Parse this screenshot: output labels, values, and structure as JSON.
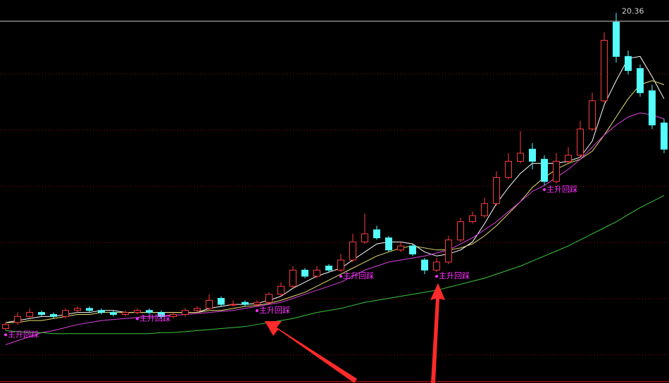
{
  "chart_data": {
    "type": "candlestick",
    "categories": [
      null,
      null,
      null,
      null,
      null,
      null,
      null,
      null,
      null,
      null,
      null,
      null,
      null,
      null,
      null,
      null,
      null,
      null,
      null,
      null,
      null,
      null,
      null,
      null,
      null,
      null,
      null,
      null,
      null,
      null,
      null,
      null,
      null,
      null,
      null,
      null,
      null,
      null,
      null,
      null,
      null,
      null,
      null,
      null,
      null,
      null,
      null,
      null,
      null,
      null,
      null,
      null,
      null,
      null,
      null,
      null
    ],
    "open": [
      4.7,
      5.0,
      5.3,
      5.5,
      5.4,
      5.3,
      5.6,
      5.7,
      5.6,
      5.5,
      5.4,
      5.5,
      5.6,
      5.5,
      5.3,
      5.4,
      5.6,
      5.7,
      6.2,
      5.9,
      6.0,
      5.9,
      6.0,
      6.4,
      6.8,
      7.6,
      7.3,
      7.8,
      7.6,
      8.1,
      9.0,
      9.6,
      9.2,
      8.6,
      8.8,
      8.1,
      7.6,
      8.0,
      9.1,
      10.0,
      10.3,
      10.9,
      12.2,
      13.0,
      13.6,
      13.1,
      12.0,
      13.0,
      13.3,
      14.6,
      16.0,
      19.9,
      18.2,
      17.6,
      16.5,
      14.9
    ],
    "high": [
      5.0,
      5.5,
      5.7,
      5.6,
      5.5,
      5.7,
      5.8,
      5.8,
      5.7,
      5.6,
      5.6,
      5.7,
      5.7,
      5.6,
      5.5,
      5.7,
      5.8,
      6.4,
      6.3,
      6.1,
      6.1,
      6.1,
      6.5,
      7.0,
      7.8,
      7.7,
      7.8,
      7.9,
      8.4,
      9.4,
      10.4,
      9.8,
      9.3,
      9.0,
      8.9,
      8.2,
      8.2,
      9.3,
      10.2,
      10.5,
      11.2,
      12.5,
      13.4,
      14.5,
      13.9,
      13.3,
      13.4,
      13.7,
      15.0,
      16.4,
      19.4,
      20.36,
      18.5,
      17.8,
      16.8,
      15.1
    ],
    "low": [
      4.6,
      4.9,
      5.2,
      5.3,
      5.2,
      5.2,
      5.5,
      5.5,
      5.4,
      5.3,
      5.3,
      5.4,
      5.4,
      5.2,
      5.2,
      5.3,
      5.5,
      5.6,
      5.8,
      5.8,
      5.8,
      5.8,
      5.9,
      6.3,
      6.7,
      7.2,
      7.2,
      7.5,
      7.5,
      8.0,
      8.9,
      9.1,
      8.5,
      8.5,
      8.3,
      7.4,
      7.5,
      7.9,
      9.0,
      9.9,
      10.2,
      10.8,
      12.1,
      12.9,
      12.6,
      11.8,
      11.9,
      12.9,
      13.2,
      14.5,
      15.9,
      17.9,
      17.3,
      16.2,
      14.6,
      13.4
    ],
    "close": [
      4.9,
      5.3,
      5.5,
      5.4,
      5.3,
      5.6,
      5.7,
      5.6,
      5.5,
      5.4,
      5.5,
      5.6,
      5.5,
      5.3,
      5.4,
      5.6,
      5.7,
      6.1,
      5.9,
      5.9,
      5.9,
      6.0,
      6.4,
      6.8,
      7.6,
      7.3,
      7.6,
      7.6,
      8.1,
      9.0,
      9.4,
      9.2,
      8.6,
      8.8,
      8.4,
      7.6,
      8.0,
      9.1,
      10.0,
      10.3,
      10.9,
      12.2,
      13.0,
      13.4,
      13.0,
      12.0,
      13.0,
      13.3,
      14.6,
      16.0,
      19.0,
      18.2,
      17.5,
      16.4,
      14.8,
      13.6
    ],
    "up_color": "#ff3c3c",
    "down_color": "#54fcfc",
    "series": [
      {
        "color": "#ffffff",
        "values": [
          5.0,
          5.1,
          5.2,
          5.3,
          5.3,
          5.4,
          5.5,
          5.5,
          5.6,
          5.6,
          5.5,
          5.5,
          5.5,
          5.5,
          5.5,
          5.5,
          5.5,
          5.7,
          5.8,
          5.9,
          5.9,
          5.95,
          6.1,
          6.3,
          6.7,
          7.0,
          7.3,
          7.5,
          7.7,
          8.1,
          8.5,
          8.9,
          9.0,
          9.0,
          8.9,
          8.5,
          8.3,
          8.4,
          8.6,
          9.0,
          9.9,
          10.9,
          11.7,
          12.4,
          12.9,
          12.9,
          12.9,
          13.0,
          13.2,
          14.0,
          15.8,
          17.0,
          18.1,
          18.2,
          17.2,
          16.1
        ]
      },
      {
        "color": "#e8e070",
        "values": [
          5.0,
          5.0,
          5.1,
          5.1,
          5.2,
          5.3,
          5.4,
          5.4,
          5.5,
          5.5,
          5.5,
          5.5,
          5.5,
          5.5,
          5.5,
          5.5,
          5.5,
          5.6,
          5.6,
          5.7,
          5.8,
          5.85,
          5.95,
          6.1,
          6.3,
          6.5,
          6.8,
          7.1,
          7.4,
          7.7,
          8.0,
          8.3,
          8.5,
          8.7,
          8.8,
          8.7,
          8.6,
          8.6,
          8.7,
          8.9,
          9.3,
          9.8,
          10.4,
          11.0,
          11.7,
          12.2,
          12.6,
          12.9,
          13.1,
          13.5,
          14.3,
          15.2,
          16.1,
          16.8,
          17.0,
          16.8
        ]
      },
      {
        "color": "#e040e0",
        "values": [
          3.9,
          4.1,
          4.3,
          4.5,
          4.6,
          4.75,
          4.9,
          5.0,
          5.1,
          5.15,
          5.2,
          5.25,
          5.3,
          5.3,
          5.35,
          5.4,
          5.45,
          5.5,
          5.55,
          5.6,
          5.7,
          5.8,
          5.9,
          6.0,
          6.2,
          6.4,
          6.6,
          6.8,
          7.0,
          7.3,
          7.6,
          7.8,
          8.0,
          8.1,
          8.2,
          8.3,
          8.45,
          8.6,
          8.9,
          9.2,
          9.6,
          10.0,
          10.5,
          11.0,
          11.5,
          11.8,
          12.2,
          12.6,
          13.1,
          13.7,
          14.3,
          14.8,
          15.2,
          15.4,
          15.3,
          15.1
        ]
      },
      {
        "color": "#3cc83c",
        "values": [
          4.6,
          4.55,
          4.5,
          4.5,
          4.45,
          4.45,
          4.45,
          4.45,
          4.45,
          4.45,
          4.45,
          4.45,
          4.45,
          4.5,
          4.5,
          4.55,
          4.6,
          4.65,
          4.7,
          4.75,
          4.8,
          4.9,
          5.0,
          5.1,
          5.2,
          5.35,
          5.5,
          5.6,
          5.7,
          5.85,
          6.0,
          6.1,
          6.2,
          6.3,
          6.4,
          6.5,
          6.6,
          6.75,
          6.9,
          7.05,
          7.2,
          7.4,
          7.6,
          7.8,
          8.05,
          8.3,
          8.55,
          8.8,
          9.1,
          9.4,
          9.7,
          10.0,
          10.35,
          10.7,
          11.0,
          11.3
        ]
      }
    ],
    "ylim": [
      2,
      21
    ],
    "gridlines": [
      17.34,
      14.55,
      11.76,
      8.97,
      6.18,
      3.4
    ],
    "grid_color": "#8b1a1a",
    "reference_line": 19.95,
    "signal_label": "主升回踩",
    "signal_color": "#ff30ff",
    "signal_values": [
      4.6,
      null,
      null,
      null,
      null,
      null,
      null,
      null,
      null,
      null,
      null,
      5.4,
      null,
      null,
      null,
      null,
      null,
      null,
      null,
      null,
      null,
      5.8,
      null,
      null,
      null,
      null,
      null,
      null,
      7.5,
      null,
      null,
      null,
      null,
      null,
      null,
      null,
      7.5,
      null,
      null,
      null,
      null,
      null,
      null,
      null,
      null,
      11.8,
      null,
      null,
      null,
      null,
      null,
      null,
      null,
      null,
      null,
      null
    ],
    "high_label_index": 51
  }
}
